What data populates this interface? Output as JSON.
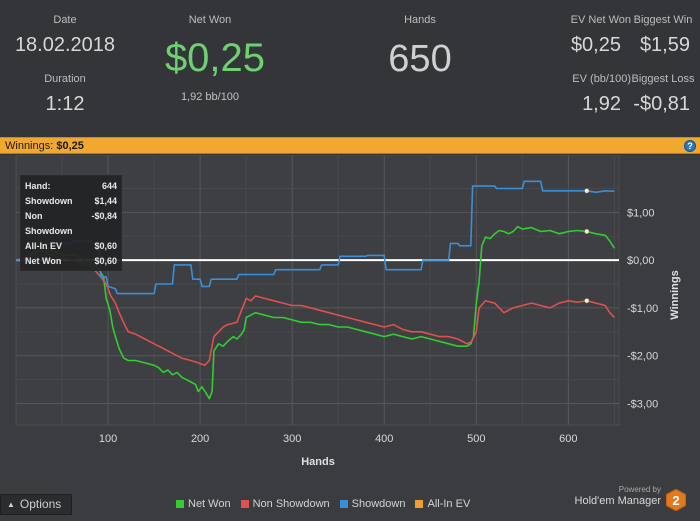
{
  "stats": {
    "date_label": "Date",
    "date_value": "18.02.2018",
    "duration_label": "Duration",
    "duration_value": "1:12",
    "net_won_label": "Net Won",
    "net_won_value": "$0,25",
    "net_won_sub": "1,92 bb/100",
    "hands_label": "Hands",
    "hands_value": "650",
    "ev_net_won_label": "EV Net Won",
    "ev_net_won_value": "$0,25",
    "biggest_win_label": "Biggest Win",
    "biggest_win_value": "$1,59",
    "ev_bb_label": "EV (bb/100)",
    "ev_bb_value": "1,92",
    "biggest_loss_label": "Biggest Loss",
    "biggest_loss_value": "-$0,81"
  },
  "winbar": {
    "label": "Winnings:",
    "value": "$0,25",
    "help_icon": "help-icon",
    "help_glyph": "?"
  },
  "tooltip": {
    "rows": [
      {
        "label": "Hand:",
        "value": "644"
      },
      {
        "label": "Showdown",
        "value": "$1,44"
      },
      {
        "label": "Non Showdown",
        "value": "-$0,84"
      },
      {
        "label": "All-In EV",
        "value": "$0,60"
      },
      {
        "label": "Net Won",
        "value": "$0,60"
      }
    ]
  },
  "options": {
    "label": "Options",
    "icon": "caret-up-icon",
    "caret_glyph": "▲"
  },
  "legend": [
    {
      "label": "Net Won",
      "color": "#33cc33"
    },
    {
      "label": "Non Showdown",
      "color": "#e05050"
    },
    {
      "label": "Showdown",
      "color": "#3b8fd9"
    },
    {
      "label": "All-In EV",
      "color": "#f0a030"
    }
  ],
  "brand": {
    "powered_by": "Powered by",
    "name": "Hold'em Manager",
    "logo_text": "2"
  },
  "colors": {
    "background": "#333538",
    "plot_background": "#3a3c3f",
    "accent_orange": "#f0a830",
    "net_won_green": "#6fd072"
  },
  "chart_data": {
    "type": "line",
    "xlabel": "Hands",
    "ylabel": "Winnings",
    "xlim": [
      0,
      655
    ],
    "ylim": [
      -3.45,
      2.2
    ],
    "xticks": [
      100,
      200,
      300,
      400,
      500,
      600
    ],
    "xtick_labels": [
      "100",
      "200",
      "300",
      "400",
      "500",
      "600"
    ],
    "yticks": [
      1,
      0,
      -1,
      -2,
      -3
    ],
    "ytick_labels": [
      "$1,00",
      "$0,00",
      "-$1,00",
      "-$2,00",
      "-$3,00"
    ],
    "grid": true,
    "legend_position": "bottom",
    "highlight_hand": 620,
    "series": [
      {
        "name": "Net Won",
        "color": "#33cc33",
        "points": [
          [
            0,
            0
          ],
          [
            5,
            0.02
          ],
          [
            10,
            0.05
          ],
          [
            15,
            0.1
          ],
          [
            20,
            0.2
          ],
          [
            25,
            0.28
          ],
          [
            30,
            0.25
          ],
          [
            38,
            0.2
          ],
          [
            45,
            0.15
          ],
          [
            55,
            0.1
          ],
          [
            62,
            0.12
          ],
          [
            70,
            0.05
          ],
          [
            78,
            -0.05
          ],
          [
            85,
            -0.1
          ],
          [
            90,
            -0.2
          ],
          [
            95,
            -0.35
          ],
          [
            98,
            -0.8
          ],
          [
            102,
            -1.05
          ],
          [
            105,
            -1.4
          ],
          [
            108,
            -1.6
          ],
          [
            112,
            -1.85
          ],
          [
            117,
            -2.05
          ],
          [
            122,
            -2.1
          ],
          [
            130,
            -2.1
          ],
          [
            140,
            -2.15
          ],
          [
            150,
            -2.2
          ],
          [
            155,
            -2.25
          ],
          [
            160,
            -2.35
          ],
          [
            165,
            -2.3
          ],
          [
            170,
            -2.4
          ],
          [
            175,
            -2.35
          ],
          [
            180,
            -2.45
          ],
          [
            185,
            -2.5
          ],
          [
            190,
            -2.55
          ],
          [
            195,
            -2.6
          ],
          [
            198,
            -2.75
          ],
          [
            202,
            -2.65
          ],
          [
            207,
            -2.8
          ],
          [
            210,
            -2.9
          ],
          [
            213,
            -2.75
          ],
          [
            215,
            -1.9
          ],
          [
            220,
            -1.75
          ],
          [
            225,
            -1.8
          ],
          [
            230,
            -1.7
          ],
          [
            236,
            -1.6
          ],
          [
            240,
            -1.65
          ],
          [
            245,
            -1.55
          ],
          [
            248,
            -1.45
          ],
          [
            250,
            -1.2
          ],
          [
            255,
            -1.15
          ],
          [
            260,
            -1.1
          ],
          [
            270,
            -1.15
          ],
          [
            280,
            -1.2
          ],
          [
            290,
            -1.2
          ],
          [
            300,
            -1.25
          ],
          [
            310,
            -1.3
          ],
          [
            320,
            -1.3
          ],
          [
            330,
            -1.35
          ],
          [
            340,
            -1.35
          ],
          [
            350,
            -1.4
          ],
          [
            360,
            -1.4
          ],
          [
            370,
            -1.45
          ],
          [
            380,
            -1.5
          ],
          [
            390,
            -1.55
          ],
          [
            400,
            -1.6
          ],
          [
            410,
            -1.55
          ],
          [
            420,
            -1.6
          ],
          [
            430,
            -1.65
          ],
          [
            440,
            -1.6
          ],
          [
            450,
            -1.65
          ],
          [
            460,
            -1.7
          ],
          [
            470,
            -1.75
          ],
          [
            480,
            -1.8
          ],
          [
            490,
            -1.8
          ],
          [
            494,
            -1.75
          ],
          [
            497,
            -1.6
          ],
          [
            500,
            -0.9
          ],
          [
            503,
            -0.45
          ],
          [
            506,
            0.3
          ],
          [
            510,
            0.48
          ],
          [
            515,
            0.45
          ],
          [
            520,
            0.55
          ],
          [
            525,
            0.62
          ],
          [
            530,
            0.6
          ],
          [
            535,
            0.55
          ],
          [
            540,
            0.6
          ],
          [
            545,
            0.7
          ],
          [
            550,
            0.65
          ],
          [
            560,
            0.68
          ],
          [
            570,
            0.6
          ],
          [
            580,
            0.62
          ],
          [
            590,
            0.55
          ],
          [
            600,
            0.6
          ],
          [
            610,
            0.62
          ],
          [
            620,
            0.6
          ],
          [
            630,
            0.55
          ],
          [
            640,
            0.52
          ],
          [
            645,
            0.4
          ],
          [
            650,
            0.25
          ]
        ]
      },
      {
        "name": "Non Showdown",
        "color": "#e05050",
        "points": [
          [
            0,
            0
          ],
          [
            5,
            0.02
          ],
          [
            10,
            0.05
          ],
          [
            15,
            0.08
          ],
          [
            20,
            0.15
          ],
          [
            25,
            0.2
          ],
          [
            32,
            0.15
          ],
          [
            40,
            0.1
          ],
          [
            50,
            0.05
          ],
          [
            60,
            0.02
          ],
          [
            70,
            -0.05
          ],
          [
            78,
            -0.1
          ],
          [
            85,
            -0.2
          ],
          [
            92,
            -0.35
          ],
          [
            98,
            -0.5
          ],
          [
            103,
            -0.75
          ],
          [
            108,
            -0.9
          ],
          [
            112,
            -1.1
          ],
          [
            118,
            -1.35
          ],
          [
            122,
            -1.5
          ],
          [
            130,
            -1.55
          ],
          [
            140,
            -1.65
          ],
          [
            150,
            -1.75
          ],
          [
            160,
            -1.85
          ],
          [
            170,
            -1.95
          ],
          [
            180,
            -2.05
          ],
          [
            190,
            -2.1
          ],
          [
            198,
            -2.15
          ],
          [
            205,
            -2.2
          ],
          [
            210,
            -2.1
          ],
          [
            215,
            -1.6
          ],
          [
            220,
            -1.5
          ],
          [
            225,
            -1.4
          ],
          [
            230,
            -1.35
          ],
          [
            240,
            -1.3
          ],
          [
            245,
            -1.05
          ],
          [
            250,
            -0.8
          ],
          [
            255,
            -0.85
          ],
          [
            260,
            -0.75
          ],
          [
            270,
            -0.8
          ],
          [
            280,
            -0.85
          ],
          [
            290,
            -0.9
          ],
          [
            300,
            -0.95
          ],
          [
            310,
            -0.95
          ],
          [
            320,
            -1.0
          ],
          [
            330,
            -1.05
          ],
          [
            340,
            -1.1
          ],
          [
            350,
            -1.15
          ],
          [
            360,
            -1.2
          ],
          [
            370,
            -1.25
          ],
          [
            380,
            -1.3
          ],
          [
            390,
            -1.35
          ],
          [
            400,
            -1.4
          ],
          [
            410,
            -1.35
          ],
          [
            420,
            -1.45
          ],
          [
            430,
            -1.5
          ],
          [
            440,
            -1.5
          ],
          [
            450,
            -1.55
          ],
          [
            460,
            -1.6
          ],
          [
            470,
            -1.6
          ],
          [
            480,
            -1.65
          ],
          [
            490,
            -1.75
          ],
          [
            495,
            -1.7
          ],
          [
            500,
            -1.5
          ],
          [
            503,
            -1.0
          ],
          [
            510,
            -0.85
          ],
          [
            520,
            -0.9
          ],
          [
            530,
            -1.1
          ],
          [
            540,
            -1.0
          ],
          [
            550,
            -0.95
          ],
          [
            560,
            -0.9
          ],
          [
            570,
            -0.95
          ],
          [
            580,
            -1.0
          ],
          [
            590,
            -0.9
          ],
          [
            600,
            -0.85
          ],
          [
            610,
            -0.88
          ],
          [
            620,
            -0.85
          ],
          [
            630,
            -0.9
          ],
          [
            640,
            -0.95
          ],
          [
            645,
            -1.1
          ],
          [
            650,
            -1.2
          ]
        ]
      },
      {
        "name": "Showdown",
        "color": "#3b8fd9",
        "points": [
          [
            0,
            0
          ],
          [
            20,
            0
          ],
          [
            22,
            0.35
          ],
          [
            60,
            0.35
          ],
          [
            62,
            0.4
          ],
          [
            80,
            0.4
          ],
          [
            82,
            0.35
          ],
          [
            90,
            0.35
          ],
          [
            92,
            -0.35
          ],
          [
            98,
            -0.35
          ],
          [
            100,
            -0.55
          ],
          [
            108,
            -0.6
          ],
          [
            110,
            -0.7
          ],
          [
            150,
            -0.7
          ],
          [
            152,
            -0.5
          ],
          [
            170,
            -0.5
          ],
          [
            172,
            -0.1
          ],
          [
            190,
            -0.1
          ],
          [
            192,
            -0.4
          ],
          [
            200,
            -0.4
          ],
          [
            202,
            -0.55
          ],
          [
            210,
            -0.55
          ],
          [
            212,
            -0.4
          ],
          [
            240,
            -0.4
          ],
          [
            242,
            -0.3
          ],
          [
            280,
            -0.3
          ],
          [
            282,
            -0.2
          ],
          [
            330,
            -0.2
          ],
          [
            332,
            -0.1
          ],
          [
            350,
            -0.1
          ],
          [
            352,
            0.08
          ],
          [
            380,
            0.08
          ],
          [
            382,
            0.1
          ],
          [
            400,
            0.1
          ],
          [
            402,
            -0.2
          ],
          [
            440,
            -0.2
          ],
          [
            442,
            0.0
          ],
          [
            470,
            0.0
          ],
          [
            472,
            0.35
          ],
          [
            480,
            0.35
          ],
          [
            482,
            0.3
          ],
          [
            490,
            0.3
          ],
          [
            494,
            0.3
          ],
          [
            496,
            1.55
          ],
          [
            520,
            1.55
          ],
          [
            522,
            1.5
          ],
          [
            550,
            1.5
          ],
          [
            552,
            1.65
          ],
          [
            570,
            1.65
          ],
          [
            572,
            1.45
          ],
          [
            600,
            1.45
          ],
          [
            620,
            1.45
          ],
          [
            630,
            1.42
          ],
          [
            640,
            1.45
          ],
          [
            650,
            1.44
          ]
        ]
      },
      {
        "name": "All-In EV",
        "color": "#f0a030",
        "points": []
      }
    ]
  }
}
